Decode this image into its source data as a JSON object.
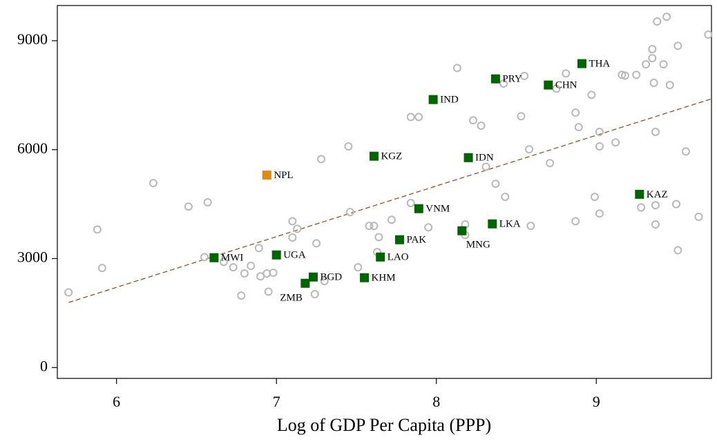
{
  "chart_data": {
    "type": "scatter",
    "xlabel": "Log of GDP Per Capita (PPP)",
    "xlim": [
      5.63,
      9.72
    ],
    "ylim": [
      -300,
      9970
    ],
    "xticks": [
      6,
      7,
      8,
      9
    ],
    "yticks": [
      0,
      3000,
      6000,
      9000
    ],
    "grid": false,
    "series": [
      {
        "color": "#b8b8b8",
        "marker": "circle",
        "x": [
          5.7,
          5.88,
          5.91,
          6.23,
          6.45,
          6.57,
          6.55,
          6.67,
          6.73,
          6.8,
          6.84,
          6.78,
          6.89,
          6.9,
          6.94,
          6.95,
          6.98,
          7.1,
          7.13,
          7.1,
          7.25,
          7.28,
          7.24,
          7.3,
          7.45,
          7.46,
          7.51,
          7.58,
          7.61,
          7.63,
          7.64,
          7.72,
          7.84,
          7.84,
          7.89,
          7.95,
          8.13,
          8.18,
          8.18,
          8.31,
          8.23,
          8.28,
          8.37,
          8.43,
          8.42,
          8.53,
          8.55,
          8.58,
          8.59,
          8.71,
          8.75,
          8.81,
          8.87,
          8.87,
          8.89,
          8.97,
          8.99,
          9.02,
          9.02,
          9.02,
          9.12,
          9.16,
          9.18,
          9.25,
          9.28,
          9.31,
          9.35,
          9.35,
          9.36,
          9.37,
          9.38,
          9.37,
          9.42,
          9.44,
          9.46,
          9.5,
          9.51,
          9.51,
          9.56,
          9.64,
          9.7,
          9.37
        ],
        "values": [
          2070,
          3800,
          2740,
          5080,
          4430,
          4550,
          3040,
          2910,
          2760,
          2590,
          2800,
          1980,
          3290,
          2510,
          2590,
          2090,
          2610,
          4030,
          3820,
          3580,
          3420,
          5740,
          2020,
          2380,
          6090,
          4280,
          2760,
          3900,
          3900,
          3180,
          3590,
          4070,
          4530,
          6900,
          6900,
          3860,
          8250,
          3940,
          3650,
          5530,
          6810,
          6660,
          5060,
          4700,
          7820,
          6920,
          8030,
          6010,
          3900,
          5630,
          7680,
          8100,
          4030,
          7020,
          6620,
          7510,
          4700,
          6090,
          4240,
          6490,
          6200,
          8060,
          8040,
          8060,
          4410,
          8350,
          8520,
          8770,
          7840,
          4470,
          9530,
          6490,
          8350,
          9660,
          7780,
          4500,
          3230,
          8860,
          5950,
          4150,
          9170,
          3940
        ]
      },
      {
        "color": "#006400",
        "marker": "square",
        "x": [
          8.91,
          8.37,
          8.7,
          7.98,
          7.61,
          8.2,
          9.27,
          7.89,
          8.35,
          8.16,
          7.77,
          6.61,
          7.0,
          7.65,
          7.23,
          7.55,
          7.18
        ],
        "values": [
          8370,
          7950,
          7780,
          7380,
          5820,
          5780,
          4770,
          4375,
          3956,
          3766,
          3519,
          3024,
          3100,
          3043,
          2492,
          2473,
          2320
        ],
        "labels": [
          "THA",
          "PRY",
          "CHN",
          "IND",
          "KGZ",
          "IDN",
          "KAZ",
          "VNM",
          "LKA",
          "MNG",
          "PAK",
          "MWI",
          "UGA",
          "LAO",
          "BGD",
          "KHM",
          "ZMB"
        ],
        "label_positions": [
          "right",
          "right",
          "right",
          "right",
          "right",
          "right",
          "right",
          "right",
          "right",
          "below-right",
          "right",
          "right",
          "right",
          "right",
          "right",
          "right",
          "below-left"
        ]
      },
      {
        "color": "#e08a16",
        "marker": "square",
        "x": [
          6.94
        ],
        "values": [
          5300
        ],
        "labels": [
          "NPL"
        ],
        "label_positions": [
          "right"
        ]
      }
    ],
    "trendline": {
      "x": [
        5.7,
        9.72
      ],
      "y": [
        1790,
        7400
      ],
      "color": "#8b4513",
      "style": "dashed"
    }
  }
}
